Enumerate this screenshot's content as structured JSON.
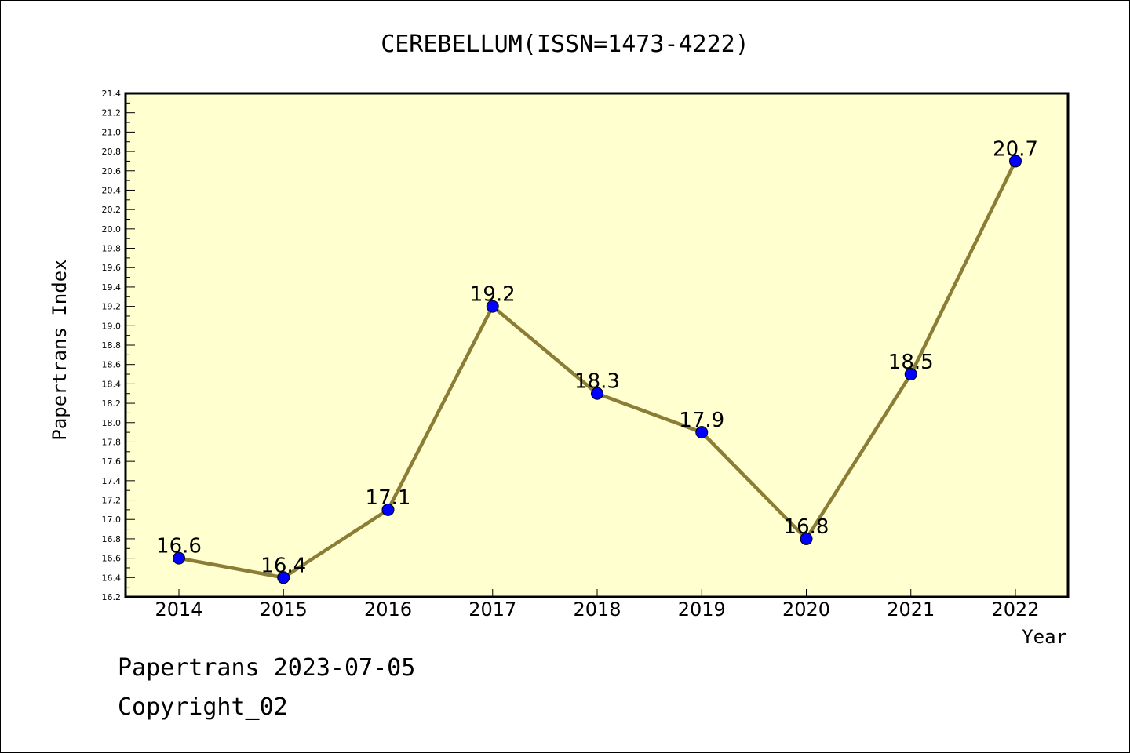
{
  "chart_data": {
    "type": "line",
    "title": "CEREBELLUM(ISSN=1473-4222)",
    "xlabel": "Year",
    "ylabel": "Papertrans Index",
    "categories": [
      "2014",
      "2015",
      "2016",
      "2017",
      "2018",
      "2019",
      "2020",
      "2021",
      "2022"
    ],
    "series": [
      {
        "values": [
          16.6,
          16.4,
          17.1,
          19.2,
          18.3,
          17.9,
          16.8,
          18.5,
          20.7
        ],
        "data_labels": [
          "16.6",
          "16.4",
          "17.1",
          "19.2",
          "18.3",
          "17.9",
          "16.8",
          "18.5",
          "20.7"
        ]
      }
    ],
    "ylim": [
      16.2,
      21.4
    ],
    "yticks": [
      "16.2",
      "16.4",
      "16.6",
      "16.8",
      "17.0",
      "17.2",
      "17.4",
      "17.6",
      "17.8",
      "18.0",
      "18.2",
      "18.4",
      "18.6",
      "18.8",
      "19.0",
      "19.2",
      "19.4",
      "19.6",
      "19.8",
      "20.0",
      "20.2",
      "20.4",
      "20.6",
      "20.8",
      "21.0",
      "21.2",
      "21.4"
    ],
    "grid": false,
    "colors": {
      "plot_background": "#ffffd0",
      "line": "#8b7d35",
      "marker": "#0000ff"
    }
  },
  "footer": {
    "line1": "Papertrans 2023-07-05",
    "line2": "Copyright_02"
  }
}
